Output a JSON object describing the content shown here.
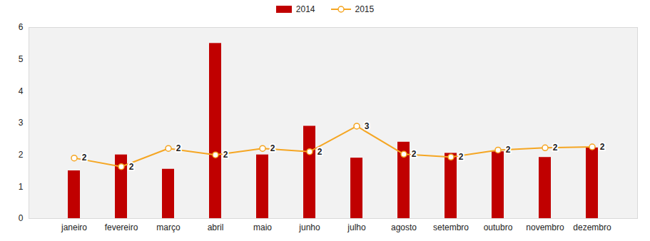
{
  "chart_data": {
    "type": "bar",
    "categories": [
      "janeiro",
      "fevereiro",
      "março",
      "abril",
      "maio",
      "junho",
      "julho",
      "agosto",
      "setembro",
      "outubro",
      "novembro",
      "dezembro"
    ],
    "series": [
      {
        "name": "2014",
        "type": "bar",
        "color": "#C00000",
        "values": [
          1.5,
          2.0,
          1.55,
          5.5,
          2.0,
          2.9,
          1.9,
          2.4,
          2.05,
          2.1,
          1.92,
          2.22
        ]
      },
      {
        "name": "2015",
        "type": "line",
        "color": "#F5A623",
        "marker": "circle",
        "values": [
          1.9,
          1.63,
          2.2,
          2.0,
          2.2,
          2.1,
          2.9,
          2.02,
          1.93,
          2.15,
          2.22,
          2.25
        ],
        "value_labels": [
          "2",
          "2",
          "2",
          "2",
          "2",
          "2",
          "3",
          "2",
          "2",
          "2",
          "2",
          "2"
        ]
      }
    ],
    "ylim": [
      0,
      6
    ],
    "yticks": [
      0,
      1,
      2,
      3,
      4,
      5,
      6
    ],
    "legend": "top",
    "data_labels": true
  }
}
